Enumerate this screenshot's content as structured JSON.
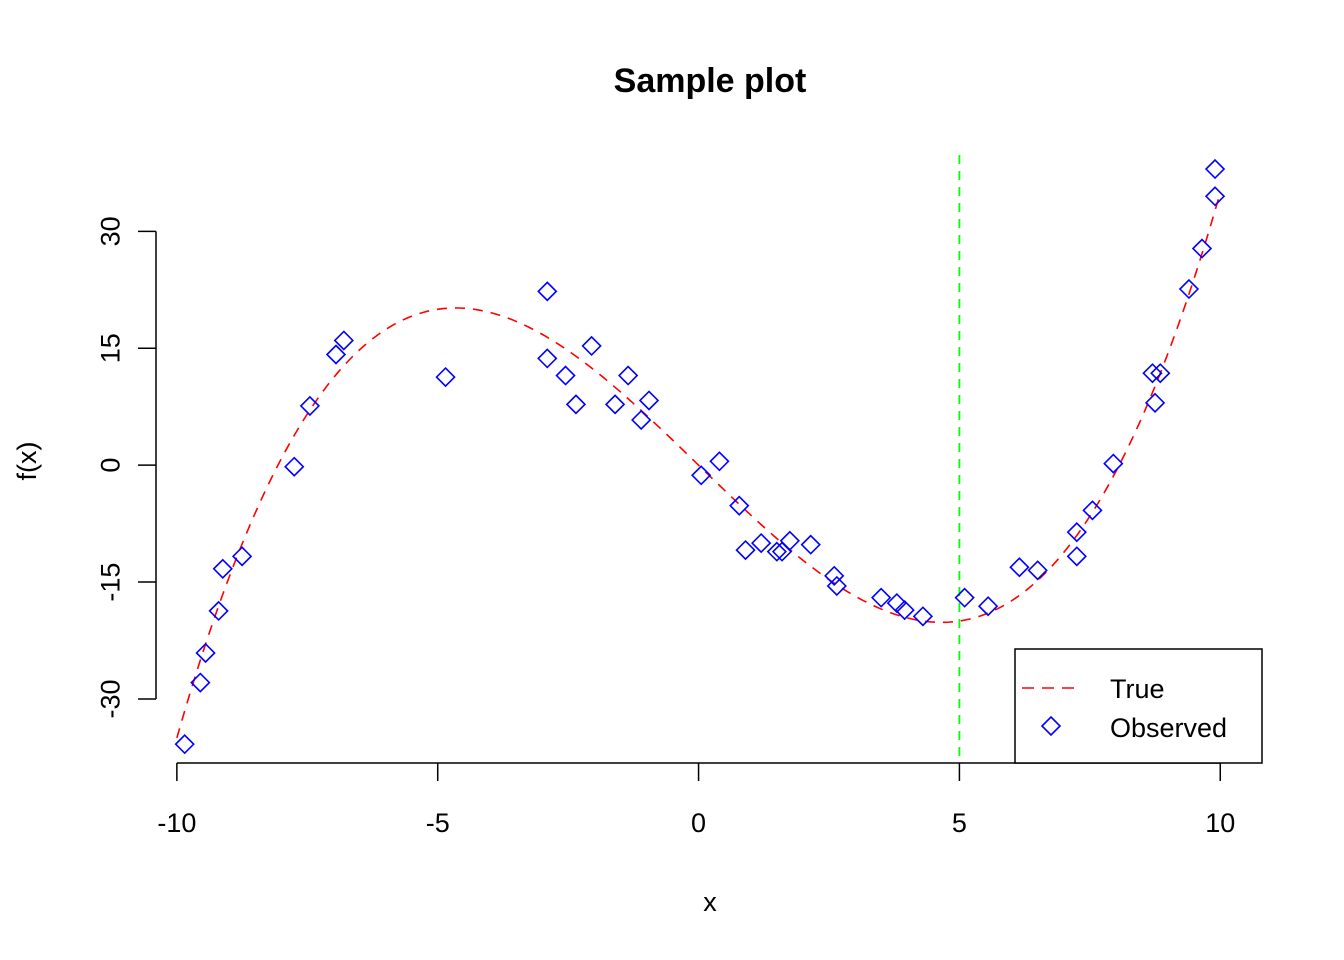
{
  "chart_data": {
    "type": "scatter",
    "title": "Sample plot",
    "xlabel": "x",
    "ylabel": "f(x)",
    "xlim": [
      -10.4,
      10.8
    ],
    "ylim": [
      -40.4,
      39.8
    ],
    "x_ticks": [
      -10,
      -5,
      0,
      5,
      10
    ],
    "x_tick_labels": [
      "-10",
      "-5",
      "0",
      "5",
      "10"
    ],
    "y_ticks": [
      -30,
      -15,
      0,
      15,
      30
    ],
    "y_tick_labels": [
      "-30",
      "-15",
      "0",
      "15",
      "30"
    ],
    "grid": false,
    "legend": {
      "position": "bottom-right",
      "entries": [
        {
          "label": "True",
          "style": "dashed-line",
          "color": "#ff0000"
        },
        {
          "label": "Observed",
          "style": "open-diamond",
          "color": "#0000ff"
        }
      ]
    },
    "series": [
      {
        "name": "True",
        "kind": "line",
        "dash": "dashed",
        "color": "#ff0000",
        "formula": "0.1*x^3 - 6.5*x",
        "x_range": [
          -10,
          10
        ]
      },
      {
        "name": "Observed",
        "kind": "points",
        "marker": "open-diamond",
        "color": "#0000ff",
        "points": [
          {
            "x": -9.85,
            "y": -35.8
          },
          {
            "x": -9.55,
            "y": -27.9
          },
          {
            "x": -9.45,
            "y": -24.1
          },
          {
            "x": -9.2,
            "y": -18.7
          },
          {
            "x": -9.12,
            "y": -13.3
          },
          {
            "x": -8.75,
            "y": -11.7
          },
          {
            "x": -7.75,
            "y": -0.2
          },
          {
            "x": -7.45,
            "y": 7.6
          },
          {
            "x": -6.95,
            "y": 14.2
          },
          {
            "x": -6.8,
            "y": 16.0
          },
          {
            "x": -4.85,
            "y": 11.3
          },
          {
            "x": -2.9,
            "y": 22.3
          },
          {
            "x": -2.9,
            "y": 13.7
          },
          {
            "x": -2.55,
            "y": 11.5
          },
          {
            "x": -2.35,
            "y": 7.8
          },
          {
            "x": -2.05,
            "y": 15.3
          },
          {
            "x": -1.6,
            "y": 7.8
          },
          {
            "x": -1.35,
            "y": 11.5
          },
          {
            "x": -1.1,
            "y": 5.8
          },
          {
            "x": -0.95,
            "y": 8.3
          },
          {
            "x": 0.05,
            "y": -1.3
          },
          {
            "x": 0.4,
            "y": 0.5
          },
          {
            "x": 0.78,
            "y": -5.2
          },
          {
            "x": 0.9,
            "y": -10.9
          },
          {
            "x": 1.2,
            "y": -10.0
          },
          {
            "x": 1.5,
            "y": -11.1
          },
          {
            "x": 1.6,
            "y": -11.1
          },
          {
            "x": 1.75,
            "y": -9.7
          },
          {
            "x": 2.15,
            "y": -10.2
          },
          {
            "x": 2.6,
            "y": -14.2
          },
          {
            "x": 2.65,
            "y": -15.5
          },
          {
            "x": 3.5,
            "y": -17.0
          },
          {
            "x": 3.8,
            "y": -17.7
          },
          {
            "x": 3.95,
            "y": -18.6
          },
          {
            "x": 4.3,
            "y": -19.4
          },
          {
            "x": 5.1,
            "y": -17.0
          },
          {
            "x": 5.55,
            "y": -18.1
          },
          {
            "x": 6.15,
            "y": -13.1
          },
          {
            "x": 6.5,
            "y": -13.5
          },
          {
            "x": 7.25,
            "y": -8.6
          },
          {
            "x": 7.25,
            "y": -11.7
          },
          {
            "x": 7.55,
            "y": -5.8
          },
          {
            "x": 7.95,
            "y": 0.2
          },
          {
            "x": 8.7,
            "y": 11.8
          },
          {
            "x": 8.75,
            "y": 8.0
          },
          {
            "x": 8.85,
            "y": 11.8
          },
          {
            "x": 9.4,
            "y": 22.6
          },
          {
            "x": 9.65,
            "y": 27.8
          },
          {
            "x": 9.9,
            "y": 34.5
          },
          {
            "x": 9.9,
            "y": 38.0
          }
        ]
      }
    ],
    "annotations": [
      {
        "type": "vertical-line",
        "x": 5,
        "style": "dashed",
        "color": "#00ff00"
      }
    ]
  }
}
